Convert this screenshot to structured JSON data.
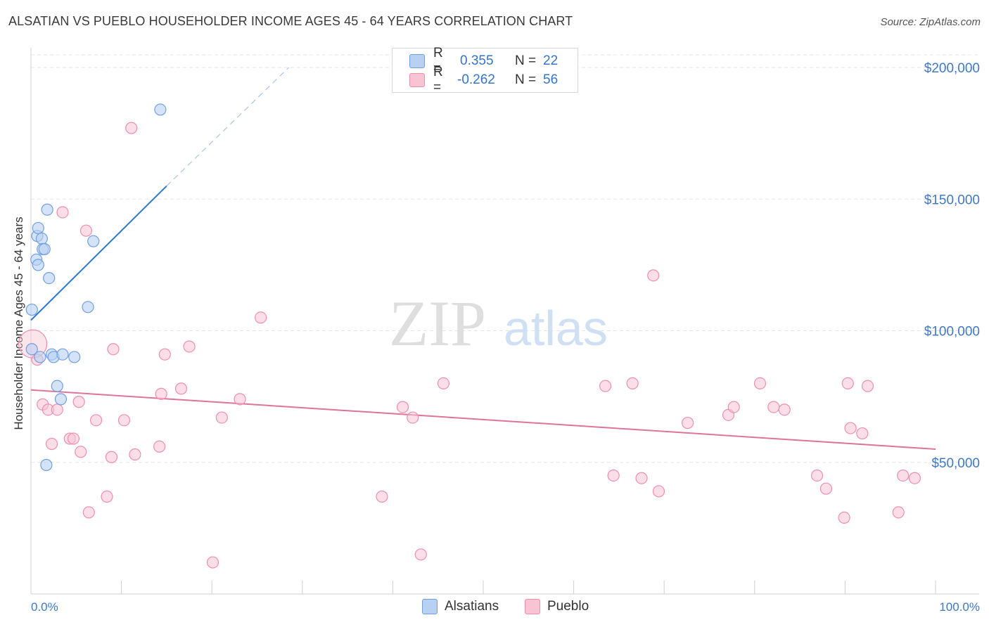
{
  "header": {
    "title": "ALSATIAN VS PUEBLO HOUSEHOLDER INCOME AGES 45 - 64 YEARS CORRELATION CHART",
    "source": "Source: ZipAtlas.com"
  },
  "watermark": {
    "zip": "ZIP",
    "atlas": "atlas"
  },
  "legend": {
    "alsatians": {
      "r_label": "R =",
      "r_value": "0.355",
      "n_label": "N =",
      "n_value": "22"
    },
    "pueblo": {
      "r_label": "R =",
      "r_value": "-0.262",
      "n_label": "N =",
      "n_value": "56"
    }
  },
  "bottom_legend": {
    "alsatians": "Alsatians",
    "pueblo": "Pueblo"
  },
  "colors": {
    "alsatians_fill": "#b8d1f3",
    "alsatians_stroke": "#6f9fe0",
    "alsatians_line": "#2f78d2",
    "pueblo_fill": "#f8c3d3",
    "pueblo_stroke": "#ee8fae",
    "pueblo_line": "#e0739a",
    "tick_label": "#3f78c8",
    "grid": "#e5e5e5"
  },
  "chart_data": {
    "type": "scatter",
    "title": "ALSATIAN VS PUEBLO HOUSEHOLDER INCOME AGES 45 - 64 YEARS CORRELATION CHART",
    "xlabel": "",
    "ylabel": "Householder Income Ages 45 - 64 years",
    "xlim": [
      0,
      100
    ],
    "ylim": [
      0,
      205000
    ],
    "x_tick_labels": {
      "min": "0.0%",
      "max": "100.0%"
    },
    "y_ticks": [
      {
        "value": 50000,
        "label": "$50,000"
      },
      {
        "value": 100000,
        "label": "$100,000"
      },
      {
        "value": 150000,
        "label": "$150,000"
      },
      {
        "value": 200000,
        "label": "$200,000"
      }
    ],
    "series": [
      {
        "name": "Alsatians",
        "points": [
          [
            0.1,
            108000
          ],
          [
            0.1,
            93000
          ],
          [
            0.6,
            127000
          ],
          [
            0.7,
            136000
          ],
          [
            0.8,
            125000
          ],
          [
            0.8,
            139000
          ],
          [
            1.0,
            90000
          ],
          [
            1.2,
            135000
          ],
          [
            1.3,
            131000
          ],
          [
            1.5,
            131000
          ],
          [
            1.8,
            146000
          ],
          [
            2.0,
            120000
          ],
          [
            2.3,
            91000
          ],
          [
            2.5,
            90000
          ],
          [
            2.9,
            79000
          ],
          [
            3.3,
            74000
          ],
          [
            3.5,
            91000
          ],
          [
            4.8,
            90000
          ],
          [
            6.3,
            109000
          ],
          [
            6.9,
            134000
          ],
          [
            14.3,
            184000
          ],
          [
            1.7,
            49000
          ]
        ],
        "trend": {
          "x0": 0,
          "y0": 104000,
          "x1": 15,
          "y1": 155000,
          "dashed_to_x": 28.5,
          "dashed_to_y": 200000
        }
      },
      {
        "name": "Pueblo",
        "points": [
          [
            0.2,
            95000
          ],
          [
            0.7,
            89000
          ],
          [
            1.3,
            72000
          ],
          [
            1.9,
            70000
          ],
          [
            2.3,
            57000
          ],
          [
            2.9,
            70000
          ],
          [
            3.5,
            145000
          ],
          [
            4.3,
            59000
          ],
          [
            4.7,
            59000
          ],
          [
            5.3,
            73000
          ],
          [
            5.5,
            54000
          ],
          [
            6.1,
            138000
          ],
          [
            6.4,
            31000
          ],
          [
            7.2,
            66000
          ],
          [
            8.4,
            37000
          ],
          [
            8.9,
            52000
          ],
          [
            9.1,
            93000
          ],
          [
            10.3,
            66000
          ],
          [
            11.1,
            177000
          ],
          [
            11.5,
            53000
          ],
          [
            14.2,
            56000
          ],
          [
            14.4,
            76000
          ],
          [
            14.8,
            91000
          ],
          [
            16.6,
            78000
          ],
          [
            17.5,
            94000
          ],
          [
            20.1,
            12000
          ],
          [
            21.1,
            67000
          ],
          [
            23.1,
            74000
          ],
          [
            25.4,
            105000
          ],
          [
            38.8,
            37000
          ],
          [
            41.1,
            71000
          ],
          [
            42.2,
            67000
          ],
          [
            43.1,
            15000
          ],
          [
            45.6,
            80000
          ],
          [
            63.5,
            79000
          ],
          [
            64.4,
            45000
          ],
          [
            66.5,
            80000
          ],
          [
            67.5,
            44000
          ],
          [
            68.8,
            121000
          ],
          [
            69.4,
            39000
          ],
          [
            72.6,
            65000
          ],
          [
            77.1,
            68000
          ],
          [
            77.7,
            71000
          ],
          [
            80.6,
            80000
          ],
          [
            82.1,
            71000
          ],
          [
            83.3,
            70000
          ],
          [
            86.9,
            45000
          ],
          [
            87.9,
            40000
          ],
          [
            89.9,
            29000
          ],
          [
            90.3,
            80000
          ],
          [
            90.6,
            63000
          ],
          [
            91.9,
            61000
          ],
          [
            92.5,
            79000
          ],
          [
            95.9,
            31000
          ],
          [
            96.4,
            45000
          ],
          [
            97.7,
            44000
          ]
        ],
        "trend": {
          "x0": 0,
          "y0": 77500,
          "x1": 100,
          "y1": 55000
        }
      }
    ]
  }
}
